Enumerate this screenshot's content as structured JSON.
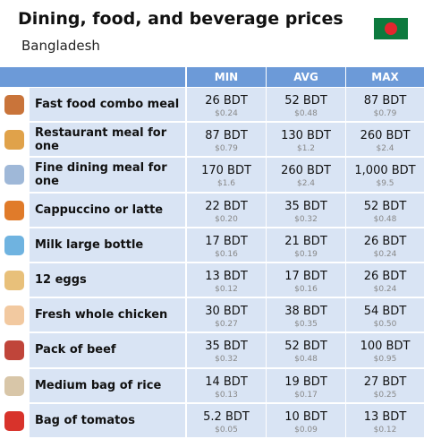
{
  "header": {
    "title": "Dining, food, and beverage prices",
    "subtitle": "Bangladesh"
  },
  "table": {
    "columns": [
      "MIN",
      "AVG",
      "MAX"
    ],
    "rows": [
      {
        "name": "Fast food combo meal",
        "cells": [
          {
            "bdt": "26 BDT",
            "usd": "$0.24"
          },
          {
            "bdt": "52 BDT",
            "usd": "$0.48"
          },
          {
            "bdt": "87 BDT",
            "usd": "$0.79"
          }
        ]
      },
      {
        "name": "Restaurant meal for one",
        "cells": [
          {
            "bdt": "87 BDT",
            "usd": "$0.79"
          },
          {
            "bdt": "130 BDT",
            "usd": "$1.2"
          },
          {
            "bdt": "260 BDT",
            "usd": "$2.4"
          }
        ]
      },
      {
        "name": "Fine dining meal for one",
        "cells": [
          {
            "bdt": "170 BDT",
            "usd": "$1.6"
          },
          {
            "bdt": "260 BDT",
            "usd": "$2.4"
          },
          {
            "bdt": "1,000 BDT",
            "usd": "$9.5"
          }
        ]
      },
      {
        "name": "Cappuccino or latte",
        "cells": [
          {
            "bdt": "22 BDT",
            "usd": "$0.20"
          },
          {
            "bdt": "35 BDT",
            "usd": "$0.32"
          },
          {
            "bdt": "52 BDT",
            "usd": "$0.48"
          }
        ]
      },
      {
        "name": "Milk large bottle",
        "cells": [
          {
            "bdt": "17 BDT",
            "usd": "$0.16"
          },
          {
            "bdt": "21 BDT",
            "usd": "$0.19"
          },
          {
            "bdt": "26 BDT",
            "usd": "$0.24"
          }
        ]
      },
      {
        "name": "12 eggs",
        "cells": [
          {
            "bdt": "13 BDT",
            "usd": "$0.12"
          },
          {
            "bdt": "17 BDT",
            "usd": "$0.16"
          },
          {
            "bdt": "26 BDT",
            "usd": "$0.24"
          }
        ]
      },
      {
        "name": "Fresh whole chicken",
        "cells": [
          {
            "bdt": "30 BDT",
            "usd": "$0.27"
          },
          {
            "bdt": "38 BDT",
            "usd": "$0.35"
          },
          {
            "bdt": "54 BDT",
            "usd": "$0.50"
          }
        ]
      },
      {
        "name": "Pack of beef",
        "cells": [
          {
            "bdt": "35 BDT",
            "usd": "$0.32"
          },
          {
            "bdt": "52 BDT",
            "usd": "$0.48"
          },
          {
            "bdt": "100 BDT",
            "usd": "$0.95"
          }
        ]
      },
      {
        "name": "Medium bag of rice",
        "cells": [
          {
            "bdt": "14 BDT",
            "usd": "$0.13"
          },
          {
            "bdt": "19 BDT",
            "usd": "$0.17"
          },
          {
            "bdt": "27 BDT",
            "usd": "$0.25"
          }
        ]
      },
      {
        "name": "Bag of tomatos",
        "cells": [
          {
            "bdt": "5.2 BDT",
            "usd": "$0.05"
          },
          {
            "bdt": "10 BDT",
            "usd": "$0.09"
          },
          {
            "bdt": "13 BDT",
            "usd": "$0.12"
          }
        ]
      }
    ]
  }
}
